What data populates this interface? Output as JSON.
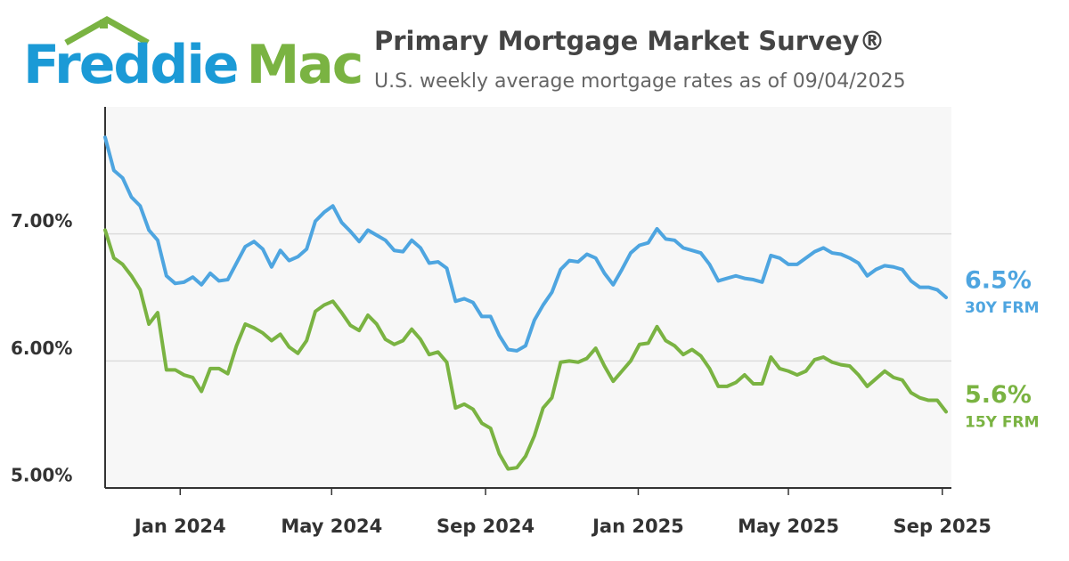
{
  "brand": {
    "first": "Freddie",
    "second": "Mac"
  },
  "chart_data": {
    "type": "line",
    "title": "Primary Mortgage Market Survey®",
    "subtitle": "U.S. weekly average mortgage rates as of 09/04/2025",
    "x": [
      0,
      1,
      2,
      3,
      4,
      5,
      6,
      7,
      8,
      9,
      10,
      11,
      12,
      13,
      14,
      15,
      16,
      17,
      18,
      19,
      20,
      21,
      22,
      23,
      24,
      25,
      26,
      27,
      28,
      29,
      30,
      31,
      32,
      33,
      34,
      35,
      36,
      37,
      38,
      39,
      40,
      41,
      42,
      43,
      44,
      45,
      46,
      47,
      48,
      49,
      50,
      51,
      52,
      53,
      54,
      55,
      56,
      57,
      58,
      59,
      60,
      61,
      62,
      63,
      64,
      65,
      66,
      67,
      68,
      69,
      70,
      71,
      72,
      73,
      74,
      75,
      76,
      77,
      78,
      79,
      80,
      81,
      82,
      83,
      84,
      85,
      86,
      87,
      88,
      89,
      90,
      91,
      92,
      93,
      94,
      95,
      96
    ],
    "xlim": [
      0,
      96
    ],
    "xticks": [
      {
        "value": 8.57,
        "label": "Jan 2024"
      },
      {
        "value": 25.86,
        "label": "May 2024"
      },
      {
        "value": 43.43,
        "label": "Sep 2024"
      },
      {
        "value": 60.86,
        "label": "Jan 2025"
      },
      {
        "value": 78,
        "label": "May 2025"
      },
      {
        "value": 95.57,
        "label": "Sep 2025"
      }
    ],
    "ylim": [
      5,
      8
    ],
    "yticks": [
      {
        "value": 5,
        "label": "5.00%"
      },
      {
        "value": 6,
        "label": "6.00%"
      },
      {
        "value": 7,
        "label": "7.00%"
      }
    ],
    "grid": true,
    "series": [
      {
        "name": "30Y FRM",
        "color": "#4ea5e0",
        "end_label": "6.5%",
        "values": [
          7.76,
          7.5,
          7.44,
          7.29,
          7.22,
          7.03,
          6.95,
          6.67,
          6.61,
          6.62,
          6.66,
          6.6,
          6.69,
          6.63,
          6.64,
          6.77,
          6.9,
          6.94,
          6.88,
          6.74,
          6.87,
          6.79,
          6.82,
          6.88,
          7.1,
          7.17,
          7.22,
          7.09,
          7.02,
          6.94,
          7.03,
          6.99,
          6.95,
          6.87,
          6.86,
          6.95,
          6.89,
          6.77,
          6.78,
          6.73,
          6.47,
          6.49,
          6.46,
          6.35,
          6.35,
          6.2,
          6.09,
          6.08,
          6.12,
          6.32,
          6.44,
          6.54,
          6.72,
          6.79,
          6.78,
          6.84,
          6.81,
          6.69,
          6.6,
          6.72,
          6.85,
          6.91,
          6.93,
          7.04,
          6.96,
          6.95,
          6.89,
          6.87,
          6.85,
          6.76,
          6.63,
          6.65,
          6.67,
          6.65,
          6.64,
          6.62,
          6.83,
          6.81,
          6.76,
          6.76,
          6.81,
          6.86,
          6.89,
          6.85,
          6.84,
          6.81,
          6.77,
          6.67,
          6.72,
          6.75,
          6.74,
          6.72,
          6.63,
          6.58,
          6.58,
          6.56,
          6.5
        ]
      },
      {
        "name": "15Y FRM",
        "color": "#7ab342",
        "end_label": "5.6%",
        "values": [
          7.03,
          6.81,
          6.76,
          6.67,
          6.56,
          6.29,
          6.38,
          5.93,
          5.93,
          5.89,
          5.87,
          5.76,
          5.94,
          5.94,
          5.9,
          6.12,
          6.29,
          6.26,
          6.22,
          6.16,
          6.21,
          6.11,
          6.06,
          6.16,
          6.39,
          6.44,
          6.47,
          6.38,
          6.28,
          6.24,
          6.36,
          6.29,
          6.17,
          6.13,
          6.16,
          6.25,
          6.17,
          6.05,
          6.07,
          5.99,
          5.63,
          5.66,
          5.62,
          5.51,
          5.47,
          5.27,
          5.15,
          5.16,
          5.25,
          5.41,
          5.63,
          5.71,
          5.99,
          6.0,
          5.99,
          6.02,
          6.1,
          5.96,
          5.84,
          5.92,
          6.0,
          6.13,
          6.14,
          6.27,
          6.16,
          6.12,
          6.05,
          6.09,
          6.04,
          5.94,
          5.8,
          5.8,
          5.83,
          5.89,
          5.82,
          5.82,
          6.03,
          5.94,
          5.92,
          5.89,
          5.92,
          6.01,
          6.03,
          5.99,
          5.97,
          5.96,
          5.89,
          5.8,
          5.86,
          5.92,
          5.87,
          5.85,
          5.75,
          5.71,
          5.69,
          5.69,
          5.6
        ]
      }
    ]
  }
}
